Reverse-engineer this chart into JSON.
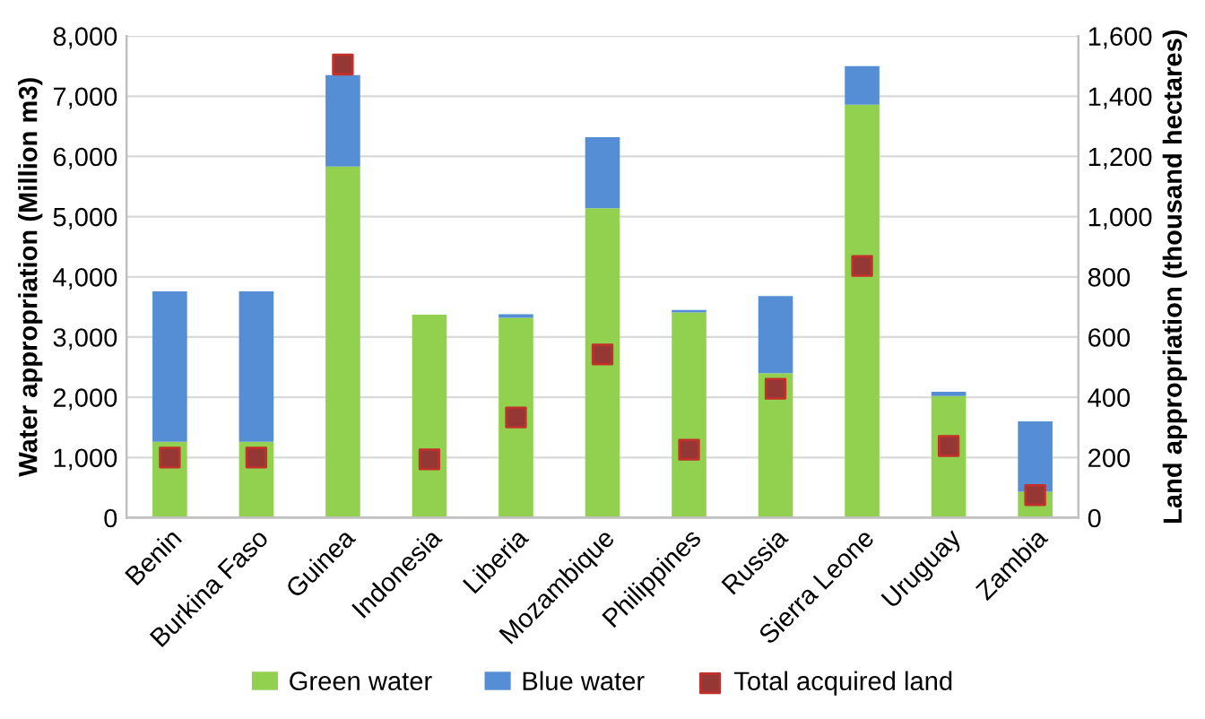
{
  "chart_data": {
    "type": "bar",
    "stacked": true,
    "categories": [
      "Benin",
      "Burkina Faso",
      "Guinea",
      "Indonesia",
      "Liberia",
      "Mozambique",
      "Philippines",
      "Russia",
      "Sierra Leone",
      "Uruguay",
      "Zambia"
    ],
    "series": [
      {
        "name": "Green water",
        "color": "#92d050",
        "values": [
          1260,
          1260,
          5830,
          3370,
          3320,
          5140,
          3410,
          2400,
          6860,
          2020,
          430
        ]
      },
      {
        "name": "Blue water",
        "color": "#558ed5",
        "values": [
          2500,
          2500,
          1520,
          0,
          60,
          1180,
          40,
          1280,
          640,
          70,
          1170
        ]
      },
      {
        "name": "Total acquired land",
        "type": "scatter",
        "axis": "y2",
        "marker": "square",
        "color": "#953735",
        "values": [
          200,
          200,
          1505,
          194,
          333,
          542,
          226,
          428,
          836,
          238,
          75
        ]
      }
    ],
    "ylabel": "Water appropriation (Million m3)",
    "y2label": "Land appropriation (thousand hectares)",
    "ylim": [
      0,
      8000
    ],
    "yticks": [
      {
        "value": 0,
        "label": "0"
      },
      {
        "value": 1000,
        "label": "1,000"
      },
      {
        "value": 2000,
        "label": "2,000"
      },
      {
        "value": 3000,
        "label": "3,000"
      },
      {
        "value": 4000,
        "label": "4,000"
      },
      {
        "value": 5000,
        "label": "5,000"
      },
      {
        "value": 6000,
        "label": "6,000"
      },
      {
        "value": 7000,
        "label": "7,000"
      },
      {
        "value": 8000,
        "label": "8,000"
      }
    ],
    "y2lim": [
      0,
      1600
    ],
    "y2ticks": [
      0,
      200,
      400,
      600,
      800,
      {
        "value": 1000,
        "label": "1,000"
      },
      {
        "value": 1200,
        "label": "1,200"
      },
      {
        "value": 1400,
        "label": "1,400"
      },
      {
        "value": 1600,
        "label": "1,600"
      }
    ],
    "grid": "y",
    "legend": "bottom"
  }
}
